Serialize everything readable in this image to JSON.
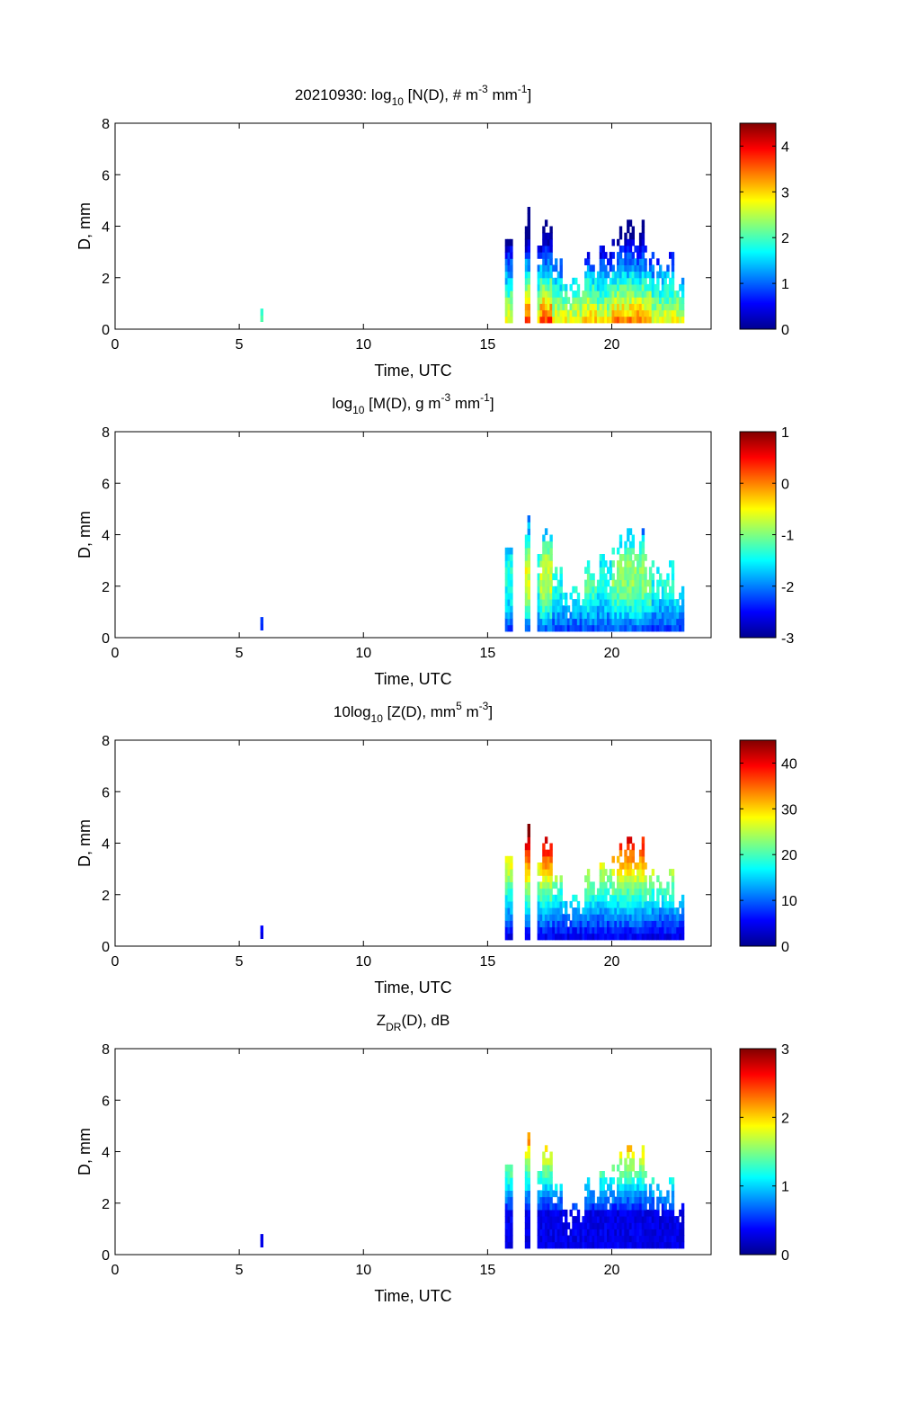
{
  "figure": {
    "date": "20210930",
    "colormap": "jet",
    "colormap_stops": [
      "#00008f",
      "#0000ff",
      "#00ffff",
      "#ffff00",
      "#ff0000",
      "#800000"
    ]
  },
  "chart_data": [
    {
      "type": "heatmap",
      "title": "20210930: log10 [N(D), # m-3 mm-1]",
      "xlabel": "Time, UTC",
      "ylabel": "D, mm",
      "xlim": [
        0,
        24
      ],
      "ylim": [
        0,
        8
      ],
      "xticks": [
        0,
        5,
        10,
        15,
        20
      ],
      "yticks": [
        0,
        2,
        4,
        6,
        8
      ],
      "colorbar": {
        "clim": [
          0,
          4.5
        ],
        "ticks": [
          0,
          1,
          2,
          3,
          4
        ]
      },
      "profile": "N"
    },
    {
      "type": "heatmap",
      "title": "log10 [M(D), g m-3 mm-1]",
      "xlabel": "Time, UTC",
      "ylabel": "D, mm",
      "xlim": [
        0,
        24
      ],
      "ylim": [
        0,
        8
      ],
      "xticks": [
        0,
        5,
        10,
        15,
        20
      ],
      "yticks": [
        0,
        2,
        4,
        6,
        8
      ],
      "colorbar": {
        "clim": [
          -3,
          1
        ],
        "ticks": [
          -3,
          -2,
          -1,
          0,
          1
        ]
      },
      "profile": "M"
    },
    {
      "type": "heatmap",
      "title": "10log10 [Z(D), mm5 m-3]",
      "xlabel": "Time, UTC",
      "ylabel": "D, mm",
      "xlim": [
        0,
        24
      ],
      "ylim": [
        0,
        8
      ],
      "xticks": [
        0,
        5,
        10,
        15,
        20
      ],
      "yticks": [
        0,
        2,
        4,
        6,
        8
      ],
      "colorbar": {
        "clim": [
          0,
          45
        ],
        "ticks": [
          0,
          10,
          20,
          30,
          40
        ]
      },
      "profile": "Z"
    },
    {
      "type": "heatmap",
      "title": "ZDR(D), dB",
      "xlabel": "Time, UTC",
      "ylabel": "D, mm",
      "xlim": [
        0,
        24
      ],
      "ylim": [
        0,
        8
      ],
      "xticks": [
        0,
        5,
        10,
        15,
        20
      ],
      "yticks": [
        0,
        2,
        4,
        6,
        8
      ],
      "colorbar": {
        "clim": [
          0,
          3
        ],
        "ticks": [
          0,
          1,
          2,
          3
        ]
      },
      "profile": "ZDR"
    }
  ],
  "titles": [
    {
      "pre": "20210930: log",
      "sub": "10",
      "mid1": " [N(D), # m",
      "sup1": "-3",
      "mid2": " mm",
      "sup2": "-1",
      "post": "]"
    },
    {
      "pre": "log",
      "sub": "10",
      "mid1": " [M(D), g m",
      "sup1": "-3",
      "mid2": " mm",
      "sup2": "-1",
      "post": "]"
    },
    {
      "pre": "10log",
      "sub": "10",
      "mid1": " [Z(D),  mm",
      "sup1": "5",
      "mid2": " m",
      "sup2": "-3",
      "post": "]"
    },
    {
      "pre": "Z",
      "sub": "DR",
      "mid1": "(D), dB",
      "sup1": "",
      "mid2": "",
      "sup2": "",
      "post": ""
    }
  ]
}
